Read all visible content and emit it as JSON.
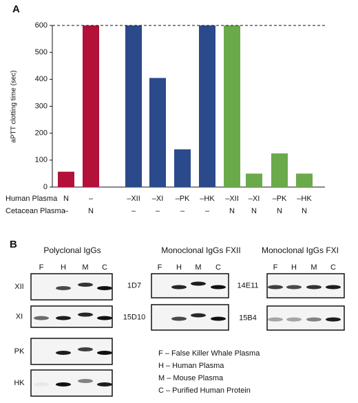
{
  "panel_labels": [
    "A",
    "B"
  ],
  "chart_data": {
    "type": "bar",
    "y_label": "aPTT clotting time (sec)",
    "categories": [
      "N",
      "–",
      "–XII",
      "–XI",
      "–PK",
      "–HK",
      "–XII",
      "–XI",
      "–PK",
      "–HK"
    ],
    "label_rows": [
      {
        "name": "Human Plasma",
        "labels": [
          "N",
          "–",
          "–XII",
          "–XI",
          "–PK",
          "–HK",
          "–XII",
          "–XI",
          "–PK",
          "–HK"
        ]
      },
      {
        "name": "Cetacean Plasma",
        "labels": [
          "–",
          "N",
          "–",
          "–",
          "–",
          "–",
          "N",
          "N",
          "N",
          "N"
        ]
      }
    ],
    "values": [
      57,
      600,
      600,
      405,
      140,
      600,
      600,
      50,
      125,
      50
    ],
    "colors": [
      "#b3103a",
      "#b3103a",
      "#2b4a8b",
      "#2b4a8b",
      "#2b4a8b",
      "#2b4a8b",
      "#6aaa4a",
      "#6aaa4a",
      "#6aaa4a",
      "#6aaa4a"
    ],
    "reference_line": 600,
    "ylim": [
      0,
      600
    ],
    "yticks": [
      0,
      100,
      200,
      300,
      400,
      500,
      600
    ]
  },
  "blots": [
    {
      "title": "Polyclonal IgGs",
      "lanes": [
        "F",
        "H",
        "M",
        "C"
      ],
      "rows": [
        "XII",
        "XI",
        "PK",
        "HK"
      ]
    },
    {
      "title": "Monoclonal IgGs FXII",
      "lanes": [
        "F",
        "H",
        "M",
        "C"
      ],
      "rows": [
        "1D7",
        "15D10"
      ]
    },
    {
      "title": "Monoclonal IgGs FXI",
      "lanes": [
        "F",
        "H",
        "M",
        "C"
      ],
      "rows": [
        "14E11",
        "15B4"
      ]
    }
  ],
  "legend": [
    "F – False Killer Whale Plasma",
    "H – Human Plasma",
    "M – Mouse Plasma",
    "C – Purified Human Protein"
  ]
}
